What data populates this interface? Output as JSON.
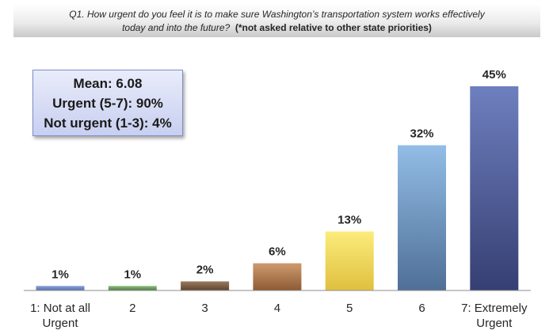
{
  "question": {
    "line1": "Q1.  How urgent do you feel it is to make sure Washington’s transportation system works effectively",
    "line2": "today and into the future?",
    "note": "(*not asked relative to other state priorities)"
  },
  "stats": {
    "mean": "Mean: 6.08",
    "urgent": "Urgent (5-7): 90%",
    "not_urgent": "Not urgent (1-3): 4%"
  },
  "chart_data": {
    "type": "bar",
    "categories": [
      [
        "1: Not at all",
        "Urgent"
      ],
      [
        "2"
      ],
      [
        "3"
      ],
      [
        "4"
      ],
      [
        "5"
      ],
      [
        "6"
      ],
      [
        "7: Extremely",
        "Urgent"
      ]
    ],
    "values": [
      1,
      1,
      2,
      6,
      13,
      32,
      45
    ],
    "value_labels": [
      "1%",
      "1%",
      "2%",
      "6%",
      "13%",
      "32%",
      "45%"
    ],
    "ylim": [
      0,
      45
    ],
    "grid": false,
    "bar_colors": [
      [
        "#8aa0d8",
        "#5a6fae"
      ],
      [
        "#8fc07c",
        "#4e7a45"
      ],
      [
        "#9b7a5e",
        "#5e4530"
      ],
      [
        "#cf9a6e",
        "#8d5a34"
      ],
      [
        "#fcec7c",
        "#dfc03e"
      ],
      [
        "#92bde6",
        "#4f6f96"
      ],
      [
        "#6e7fbf",
        "#363f72"
      ]
    ]
  }
}
